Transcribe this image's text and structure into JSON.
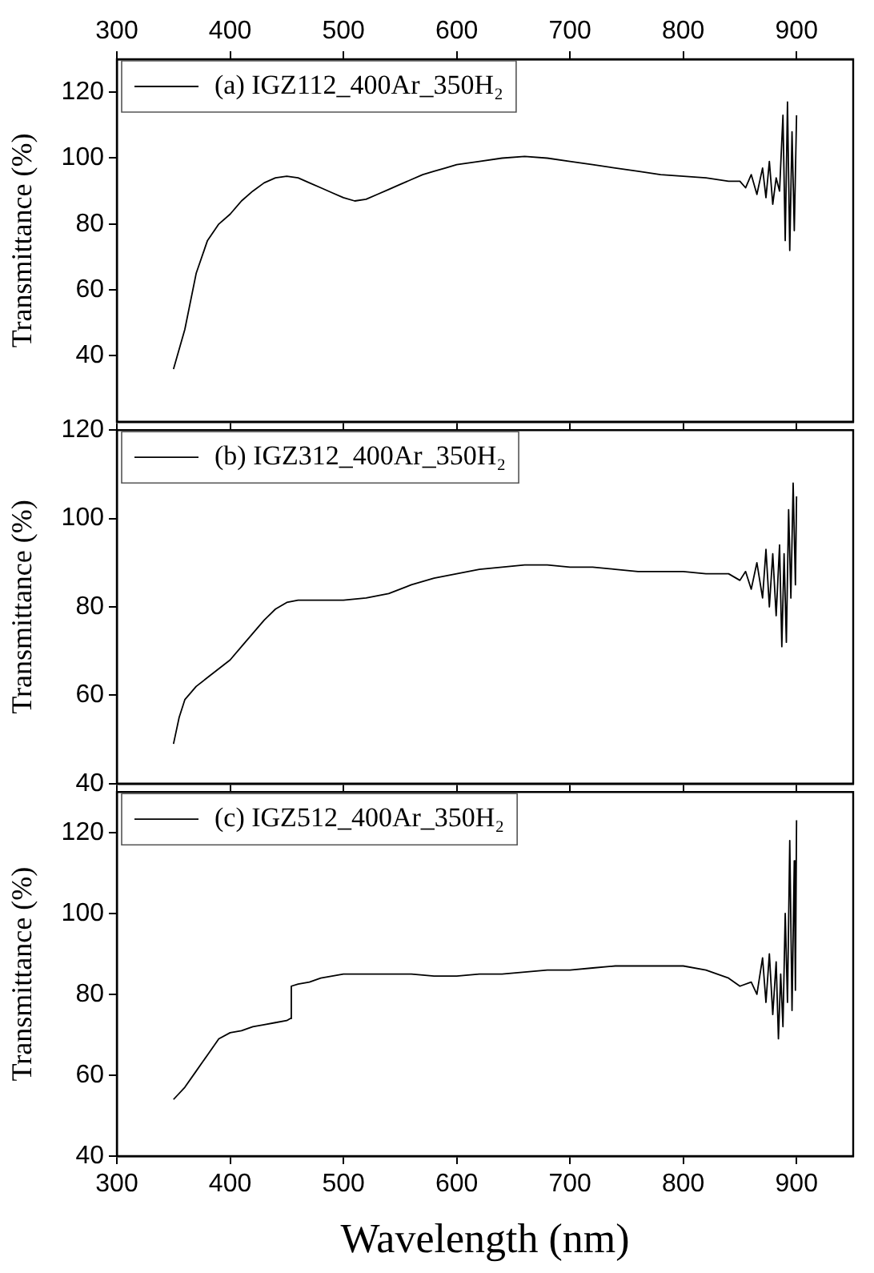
{
  "chart_data": [
    {
      "type": "line",
      "ylabel": "Transmittance (%)",
      "legend": "top left",
      "grid": false,
      "tick_labels": "y",
      "xlim": [
        300,
        950
      ],
      "xticks": [
        300,
        400,
        500,
        600,
        700,
        800,
        900
      ],
      "x2lim": [
        300,
        950
      ],
      "x2ticks": [
        300,
        400,
        500,
        600,
        700,
        800,
        900
      ],
      "ylim": [
        20,
        130
      ],
      "yticks": [
        40,
        60,
        80,
        100,
        120
      ],
      "series": [
        {
          "name": "(a) IGZ112_400Ar_350H₂",
          "color": "#000000",
          "x": [
            350,
            360,
            370,
            380,
            390,
            400,
            410,
            420,
            430,
            440,
            450,
            460,
            470,
            480,
            490,
            500,
            510,
            520,
            530,
            540,
            550,
            560,
            570,
            580,
            590,
            600,
            620,
            640,
            660,
            680,
            700,
            720,
            740,
            760,
            780,
            800,
            820,
            840,
            850,
            855,
            860,
            865,
            870,
            873,
            876,
            879,
            882,
            885,
            888,
            890,
            892,
            894,
            896,
            898,
            900
          ],
          "values": [
            36,
            48,
            65,
            75,
            80,
            83,
            87,
            90,
            92.5,
            94,
            94.5,
            94,
            92.5,
            91,
            89.5,
            88,
            87,
            87.5,
            89,
            90.5,
            92,
            93.5,
            95,
            96,
            97,
            98,
            99,
            100,
            100.5,
            100,
            99,
            98,
            97,
            96,
            95,
            94.5,
            94,
            93,
            93,
            91,
            95,
            89,
            97,
            88,
            99,
            86,
            94,
            90,
            113,
            75,
            117,
            72,
            108,
            78,
            113
          ]
        }
      ]
    },
    {
      "type": "line",
      "ylabel": "Transmittance (%)",
      "legend": "top left",
      "grid": false,
      "tick_labels": "y",
      "xlim": [
        300,
        950
      ],
      "xticks": [
        300,
        400,
        500,
        600,
        700,
        800,
        900
      ],
      "ylim": [
        40,
        120
      ],
      "yticks": [
        40,
        60,
        80,
        100,
        120
      ],
      "series": [
        {
          "name": "(b) IGZ312_400Ar_350H₂",
          "color": "#000000",
          "x": [
            350,
            355,
            360,
            370,
            380,
            390,
            400,
            410,
            420,
            430,
            440,
            450,
            460,
            480,
            500,
            520,
            540,
            560,
            580,
            600,
            620,
            640,
            660,
            680,
            700,
            720,
            740,
            760,
            780,
            800,
            820,
            840,
            850,
            855,
            860,
            865,
            870,
            873,
            876,
            879,
            882,
            885,
            887,
            889,
            891,
            893,
            895,
            897,
            899,
            900
          ],
          "values": [
            49,
            55,
            59,
            62,
            64,
            66,
            68,
            71,
            74,
            77,
            79.5,
            81,
            81.5,
            81.5,
            81.5,
            82,
            83,
            85,
            86.5,
            87.5,
            88.5,
            89,
            89.5,
            89.5,
            89,
            89,
            88.5,
            88,
            88,
            88,
            87.5,
            87.5,
            86,
            88,
            84,
            90,
            82,
            93,
            80,
            92,
            78,
            94,
            71,
            92,
            72,
            102,
            82,
            108,
            85,
            105
          ]
        }
      ]
    },
    {
      "type": "line",
      "xlabel": "Wavelength (nm)",
      "ylabel": "Transmittance (%)",
      "legend": "top left",
      "grid": false,
      "xlim": [
        300,
        950
      ],
      "xticks": [
        300,
        400,
        500,
        600,
        700,
        800,
        900
      ],
      "ylim": [
        40,
        130
      ],
      "yticks": [
        40,
        60,
        80,
        100,
        120
      ],
      "series": [
        {
          "name": "(c) IGZ512_400Ar_350H₂",
          "color": "#000000",
          "x": [
            350,
            360,
            370,
            380,
            390,
            400,
            410,
            420,
            430,
            440,
            450,
            453,
            454,
            460,
            470,
            480,
            490,
            500,
            520,
            540,
            560,
            580,
            600,
            620,
            640,
            660,
            680,
            700,
            720,
            740,
            760,
            780,
            800,
            820,
            840,
            850,
            860,
            865,
            870,
            873,
            876,
            879,
            882,
            884,
            886,
            888,
            890,
            892,
            894,
            896,
            898,
            899,
            900
          ],
          "values": [
            54,
            57,
            61,
            65,
            69,
            70.5,
            71,
            72,
            72.5,
            73,
            73.5,
            74,
            82,
            82.5,
            83,
            84,
            84.5,
            85,
            85,
            85,
            85,
            84.5,
            84.5,
            85,
            85,
            85.5,
            86,
            86,
            86.5,
            87,
            87,
            87,
            87,
            86,
            84,
            82,
            83,
            80,
            89,
            78,
            90,
            75,
            88,
            69,
            85,
            72,
            100,
            78,
            118,
            76,
            113,
            81,
            123
          ]
        }
      ]
    }
  ]
}
